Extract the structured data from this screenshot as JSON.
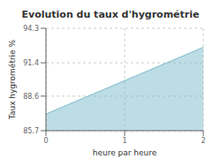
{
  "chart_data": {
    "type": "area",
    "title": "Evolution du taux d'hygrométrie",
    "xlabel": "heure par heure",
    "ylabel": "Taux hygrométrie %",
    "x": [
      0,
      2
    ],
    "values": [
      87.1,
      92.7
    ],
    "xlim": [
      0,
      2
    ],
    "ylim": [
      85.7,
      94.3
    ],
    "xticks": [
      0,
      1,
      2
    ],
    "yticks": [
      85.7,
      88.6,
      91.4,
      94.3
    ],
    "color": "#7bbccc",
    "grid": true
  }
}
